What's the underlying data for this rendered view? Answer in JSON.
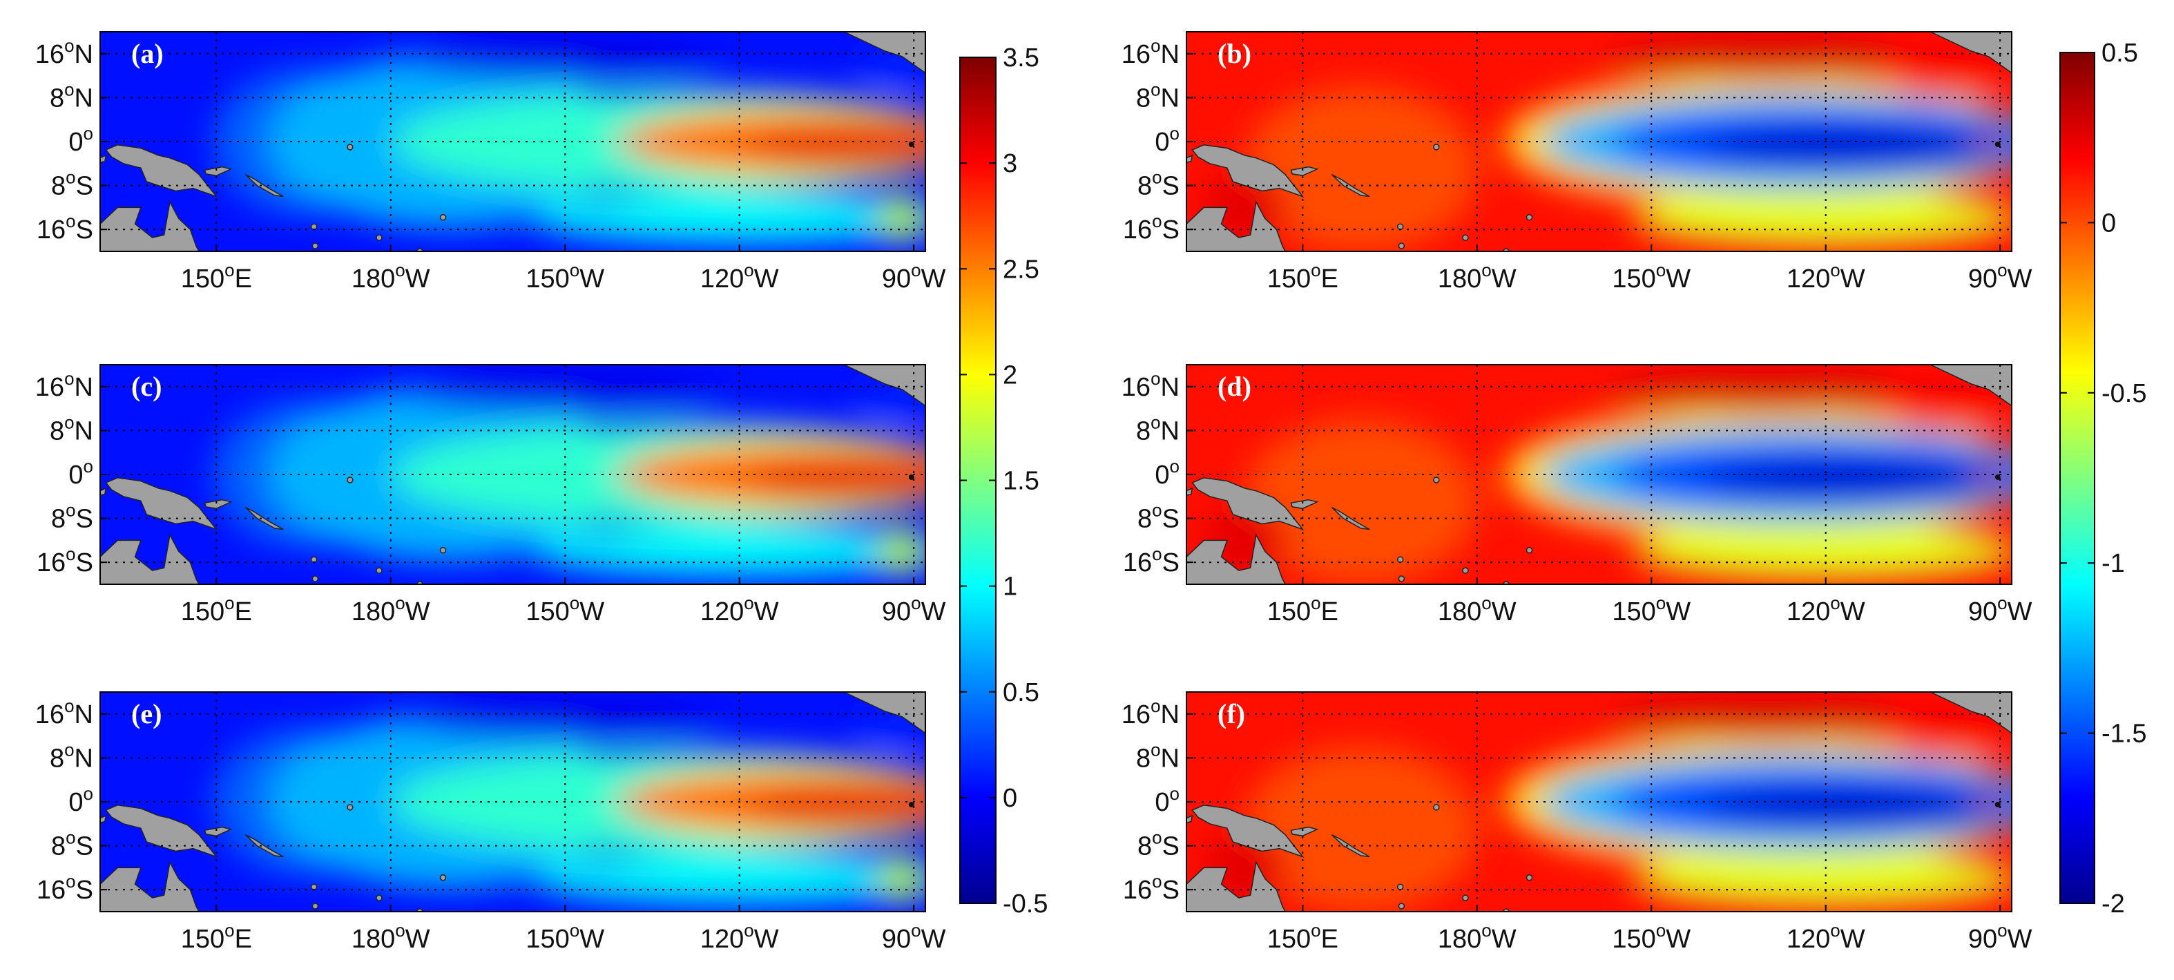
{
  "figure": {
    "description_labels": true
  },
  "chart_data": [
    {
      "type": "heatmap",
      "panel": "(a)",
      "variable_group": "left",
      "colorbar": "left",
      "xticks": [
        "150",
        "180",
        "150",
        "120",
        "90"
      ],
      "xtick_dirs": [
        "E",
        "W",
        "W",
        "W",
        "W"
      ],
      "yticks": [
        "16",
        "8",
        "0",
        "8",
        "16"
      ],
      "ytick_dirs": [
        "N",
        "N",
        "",
        "S",
        "S"
      ],
      "xlim_deg_east": [
        130,
        272
      ],
      "ylim_deg": [
        -20,
        20
      ],
      "grid": "dotted"
    },
    {
      "type": "heatmap",
      "panel": "(b)",
      "variable_group": "right",
      "colorbar": "right",
      "xticks": [
        "150",
        "180",
        "150",
        "120",
        "90"
      ],
      "xtick_dirs": [
        "E",
        "W",
        "W",
        "W",
        "W"
      ],
      "yticks": [
        "16",
        "8",
        "0",
        "8",
        "16"
      ],
      "ytick_dirs": [
        "N",
        "N",
        "",
        "S",
        "S"
      ],
      "xlim_deg_east": [
        130,
        272
      ],
      "ylim_deg": [
        -20,
        20
      ],
      "grid": "dotted"
    },
    {
      "type": "heatmap",
      "panel": "(c)",
      "variable_group": "left",
      "colorbar": "left",
      "xticks": [
        "150",
        "180",
        "150",
        "120",
        "90"
      ],
      "xtick_dirs": [
        "E",
        "W",
        "W",
        "W",
        "W"
      ],
      "yticks": [
        "16",
        "8",
        "0",
        "8",
        "16"
      ],
      "ytick_dirs": [
        "N",
        "N",
        "",
        "S",
        "S"
      ],
      "xlim_deg_east": [
        130,
        272
      ],
      "ylim_deg": [
        -20,
        20
      ],
      "grid": "dotted"
    },
    {
      "type": "heatmap",
      "panel": "(d)",
      "variable_group": "right",
      "colorbar": "right",
      "xticks": [
        "150",
        "180",
        "150",
        "120",
        "90"
      ],
      "xtick_dirs": [
        "E",
        "W",
        "W",
        "W",
        "W"
      ],
      "yticks": [
        "16",
        "8",
        "0",
        "8",
        "16"
      ],
      "ytick_dirs": [
        "N",
        "N",
        "",
        "S",
        "S"
      ],
      "xlim_deg_east": [
        130,
        272
      ],
      "ylim_deg": [
        -20,
        20
      ],
      "grid": "dotted"
    },
    {
      "type": "heatmap",
      "panel": "(e)",
      "variable_group": "left",
      "colorbar": "left",
      "xticks": [
        "150",
        "180",
        "150",
        "120",
        "90"
      ],
      "xtick_dirs": [
        "E",
        "W",
        "W",
        "W",
        "W"
      ],
      "yticks": [
        "16",
        "8",
        "0",
        "8",
        "16"
      ],
      "ytick_dirs": [
        "N",
        "N",
        "",
        "S",
        "S"
      ],
      "xlim_deg_east": [
        130,
        272
      ],
      "ylim_deg": [
        -20,
        20
      ],
      "grid": "dotted"
    },
    {
      "type": "heatmap",
      "panel": "(f)",
      "variable_group": "right",
      "colorbar": "right",
      "xticks": [
        "150",
        "180",
        "150",
        "120",
        "90"
      ],
      "xtick_dirs": [
        "E",
        "W",
        "W",
        "W",
        "W"
      ],
      "yticks": [
        "16",
        "8",
        "0",
        "8",
        "16"
      ],
      "ytick_dirs": [
        "N",
        "N",
        "",
        "S",
        "S"
      ],
      "xlim_deg_east": [
        130,
        272
      ],
      "ylim_deg": [
        -20,
        20
      ],
      "grid": "dotted"
    }
  ],
  "colorbars": {
    "left": {
      "min": -0.5,
      "max": 3.5,
      "ticks": [
        "3.5",
        "3",
        "2.5",
        "2",
        "1.5",
        "1",
        "0.5",
        "0",
        "-0.5"
      ],
      "tick_values": [
        3.5,
        3,
        2.5,
        2,
        1.5,
        1,
        0.5,
        0,
        -0.5
      ],
      "colormap": "jet"
    },
    "right": {
      "min": -2,
      "max": 0.5,
      "ticks": [
        "0.5",
        "0",
        "-0.5",
        "-1",
        "-1.5",
        "-2"
      ],
      "tick_values": [
        0.5,
        0,
        -0.5,
        -1,
        -1.5,
        -2
      ],
      "colormap": "jet"
    }
  },
  "land_color": "#a0a0a0"
}
